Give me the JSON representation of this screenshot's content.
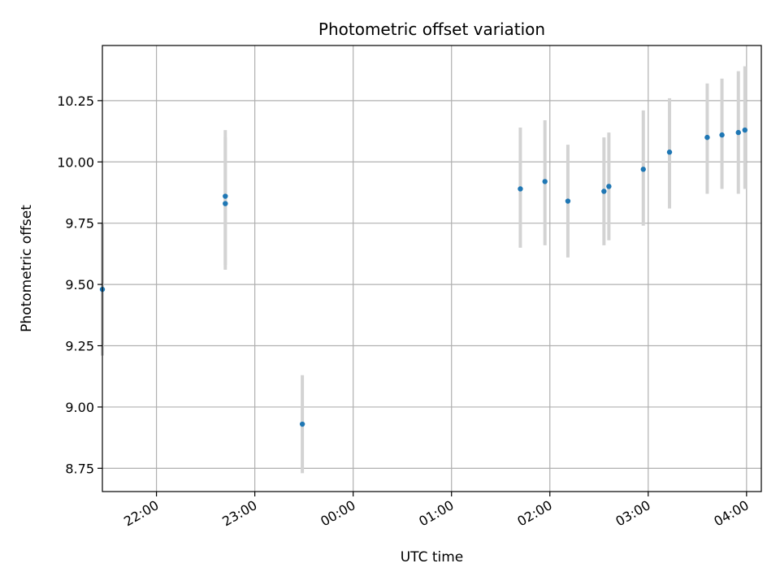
{
  "chart_data": {
    "type": "scatter",
    "title": "Photometric offset variation",
    "xlabel": "UTC time",
    "ylabel": "Photometric offset",
    "grid": true,
    "x_unit": "UTC time (HH:MM)",
    "xlim": [
      "21:27",
      "04:09"
    ],
    "ylim": [
      8.655,
      10.475
    ],
    "x_ticks": [
      "22:00",
      "23:00",
      "00:00",
      "01:00",
      "02:00",
      "03:00",
      "04:00"
    ],
    "y_ticks": [
      "8.75",
      "9.00",
      "9.25",
      "9.50",
      "9.75",
      "10.00",
      "10.25"
    ],
    "colors": {
      "point": "#1f77b4",
      "errorbar": "#d3d3d3",
      "grid": "#b0b0b0"
    },
    "points": [
      {
        "x": "21:27",
        "y": 9.48,
        "yerr_low": 9.21,
        "yerr_high": 9.75
      },
      {
        "x": "22:42",
        "y": 9.83,
        "yerr_low": 9.58,
        "yerr_high": 10.1
      },
      {
        "x": "22:42",
        "y": 9.86,
        "yerr_low": 9.56,
        "yerr_high": 10.13
      },
      {
        "x": "23:29",
        "y": 8.93,
        "yerr_low": 8.73,
        "yerr_high": 9.13
      },
      {
        "x": "01:42",
        "y": 9.89,
        "yerr_low": 9.65,
        "yerr_high": 10.14
      },
      {
        "x": "01:57",
        "y": 9.92,
        "yerr_low": 9.66,
        "yerr_high": 10.17
      },
      {
        "x": "02:11",
        "y": 9.84,
        "yerr_low": 9.61,
        "yerr_high": 10.07
      },
      {
        "x": "02:33",
        "y": 9.88,
        "yerr_low": 9.66,
        "yerr_high": 10.1
      },
      {
        "x": "02:36",
        "y": 9.9,
        "yerr_low": 9.68,
        "yerr_high": 10.12
      },
      {
        "x": "02:57",
        "y": 9.97,
        "yerr_low": 9.74,
        "yerr_high": 10.21
      },
      {
        "x": "03:13",
        "y": 10.04,
        "yerr_low": 9.81,
        "yerr_high": 10.26
      },
      {
        "x": "03:36",
        "y": 10.1,
        "yerr_low": 9.87,
        "yerr_high": 10.32
      },
      {
        "x": "03:45",
        "y": 10.11,
        "yerr_low": 9.89,
        "yerr_high": 10.34
      },
      {
        "x": "03:55",
        "y": 10.12,
        "yerr_low": 9.87,
        "yerr_high": 10.37
      },
      {
        "x": "03:59",
        "y": 10.13,
        "yerr_low": 9.89,
        "yerr_high": 10.39
      }
    ]
  }
}
